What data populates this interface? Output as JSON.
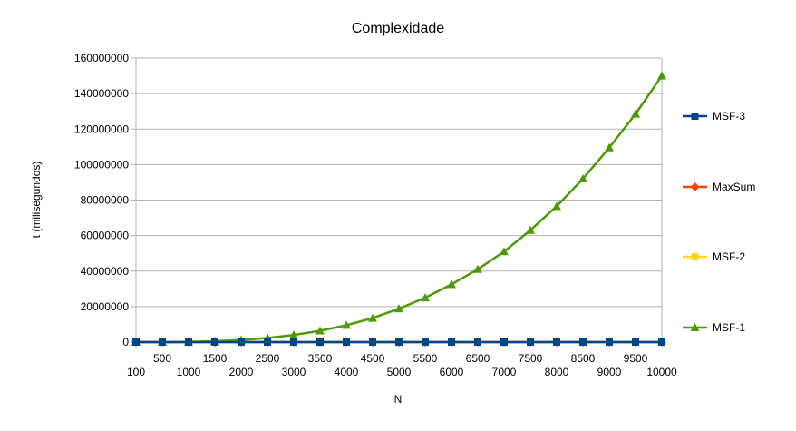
{
  "chart_data": {
    "type": "line",
    "title": "Complexidade",
    "xlabel": "N",
    "ylabel": "t (milisegundos)",
    "x": [
      100,
      500,
      1000,
      1500,
      2000,
      2500,
      3000,
      3500,
      4000,
      4500,
      5000,
      5500,
      6000,
      6500,
      7000,
      7500,
      8000,
      8500,
      9000,
      9500,
      10000
    ],
    "x_tick_labels": [
      "100",
      "500",
      "1000",
      "1500",
      "2000",
      "2500",
      "3000",
      "3500",
      "4000",
      "4500",
      "5000",
      "5500",
      "6000",
      "6500",
      "7000",
      "7500",
      "8000",
      "8500",
      "9000",
      "9500",
      "10000"
    ],
    "ylim": [
      0,
      160000000
    ],
    "y_ticks": [
      0,
      20000000,
      40000000,
      60000000,
      80000000,
      100000000,
      120000000,
      140000000,
      160000000
    ],
    "y_tick_labels": [
      "0",
      "20000000",
      "40000000",
      "60000000",
      "80000000",
      "100000000",
      "120000000",
      "140000000",
      "160000000"
    ],
    "grid": "horizontal",
    "legend_position": "right",
    "series": [
      {
        "name": "MSF-1",
        "color": "#4e9a06",
        "marker": "triangle",
        "values": [
          0,
          20000,
          150000,
          500000,
          1200000,
          2300000,
          4000000,
          6400000,
          9500000,
          13500000,
          18800000,
          25000000,
          32500000,
          41000000,
          51000000,
          63000000,
          76500000,
          92000000,
          109500000,
          128500000,
          150000000
        ]
      },
      {
        "name": "MSF-2",
        "color": "#ffd320",
        "marker": "square",
        "values": [
          0,
          0,
          0,
          0,
          0,
          0,
          0,
          0,
          0,
          0,
          0,
          0,
          0,
          0,
          0,
          0,
          0,
          0,
          0,
          0,
          0
        ]
      },
      {
        "name": "MaxSum",
        "color": "#ff420e",
        "marker": "diamond",
        "values": [
          0,
          0,
          0,
          0,
          0,
          0,
          0,
          0,
          0,
          0,
          0,
          0,
          0,
          0,
          0,
          0,
          0,
          0,
          0,
          0,
          0
        ]
      },
      {
        "name": "MSF-3",
        "color": "#004586",
        "marker": "square",
        "values": [
          0,
          0,
          0,
          0,
          0,
          0,
          0,
          0,
          0,
          0,
          0,
          0,
          0,
          0,
          0,
          0,
          0,
          0,
          0,
          0,
          0
        ]
      }
    ],
    "legend_order": [
      "MSF-3",
      "MaxSum",
      "MSF-2",
      "MSF-1"
    ]
  }
}
